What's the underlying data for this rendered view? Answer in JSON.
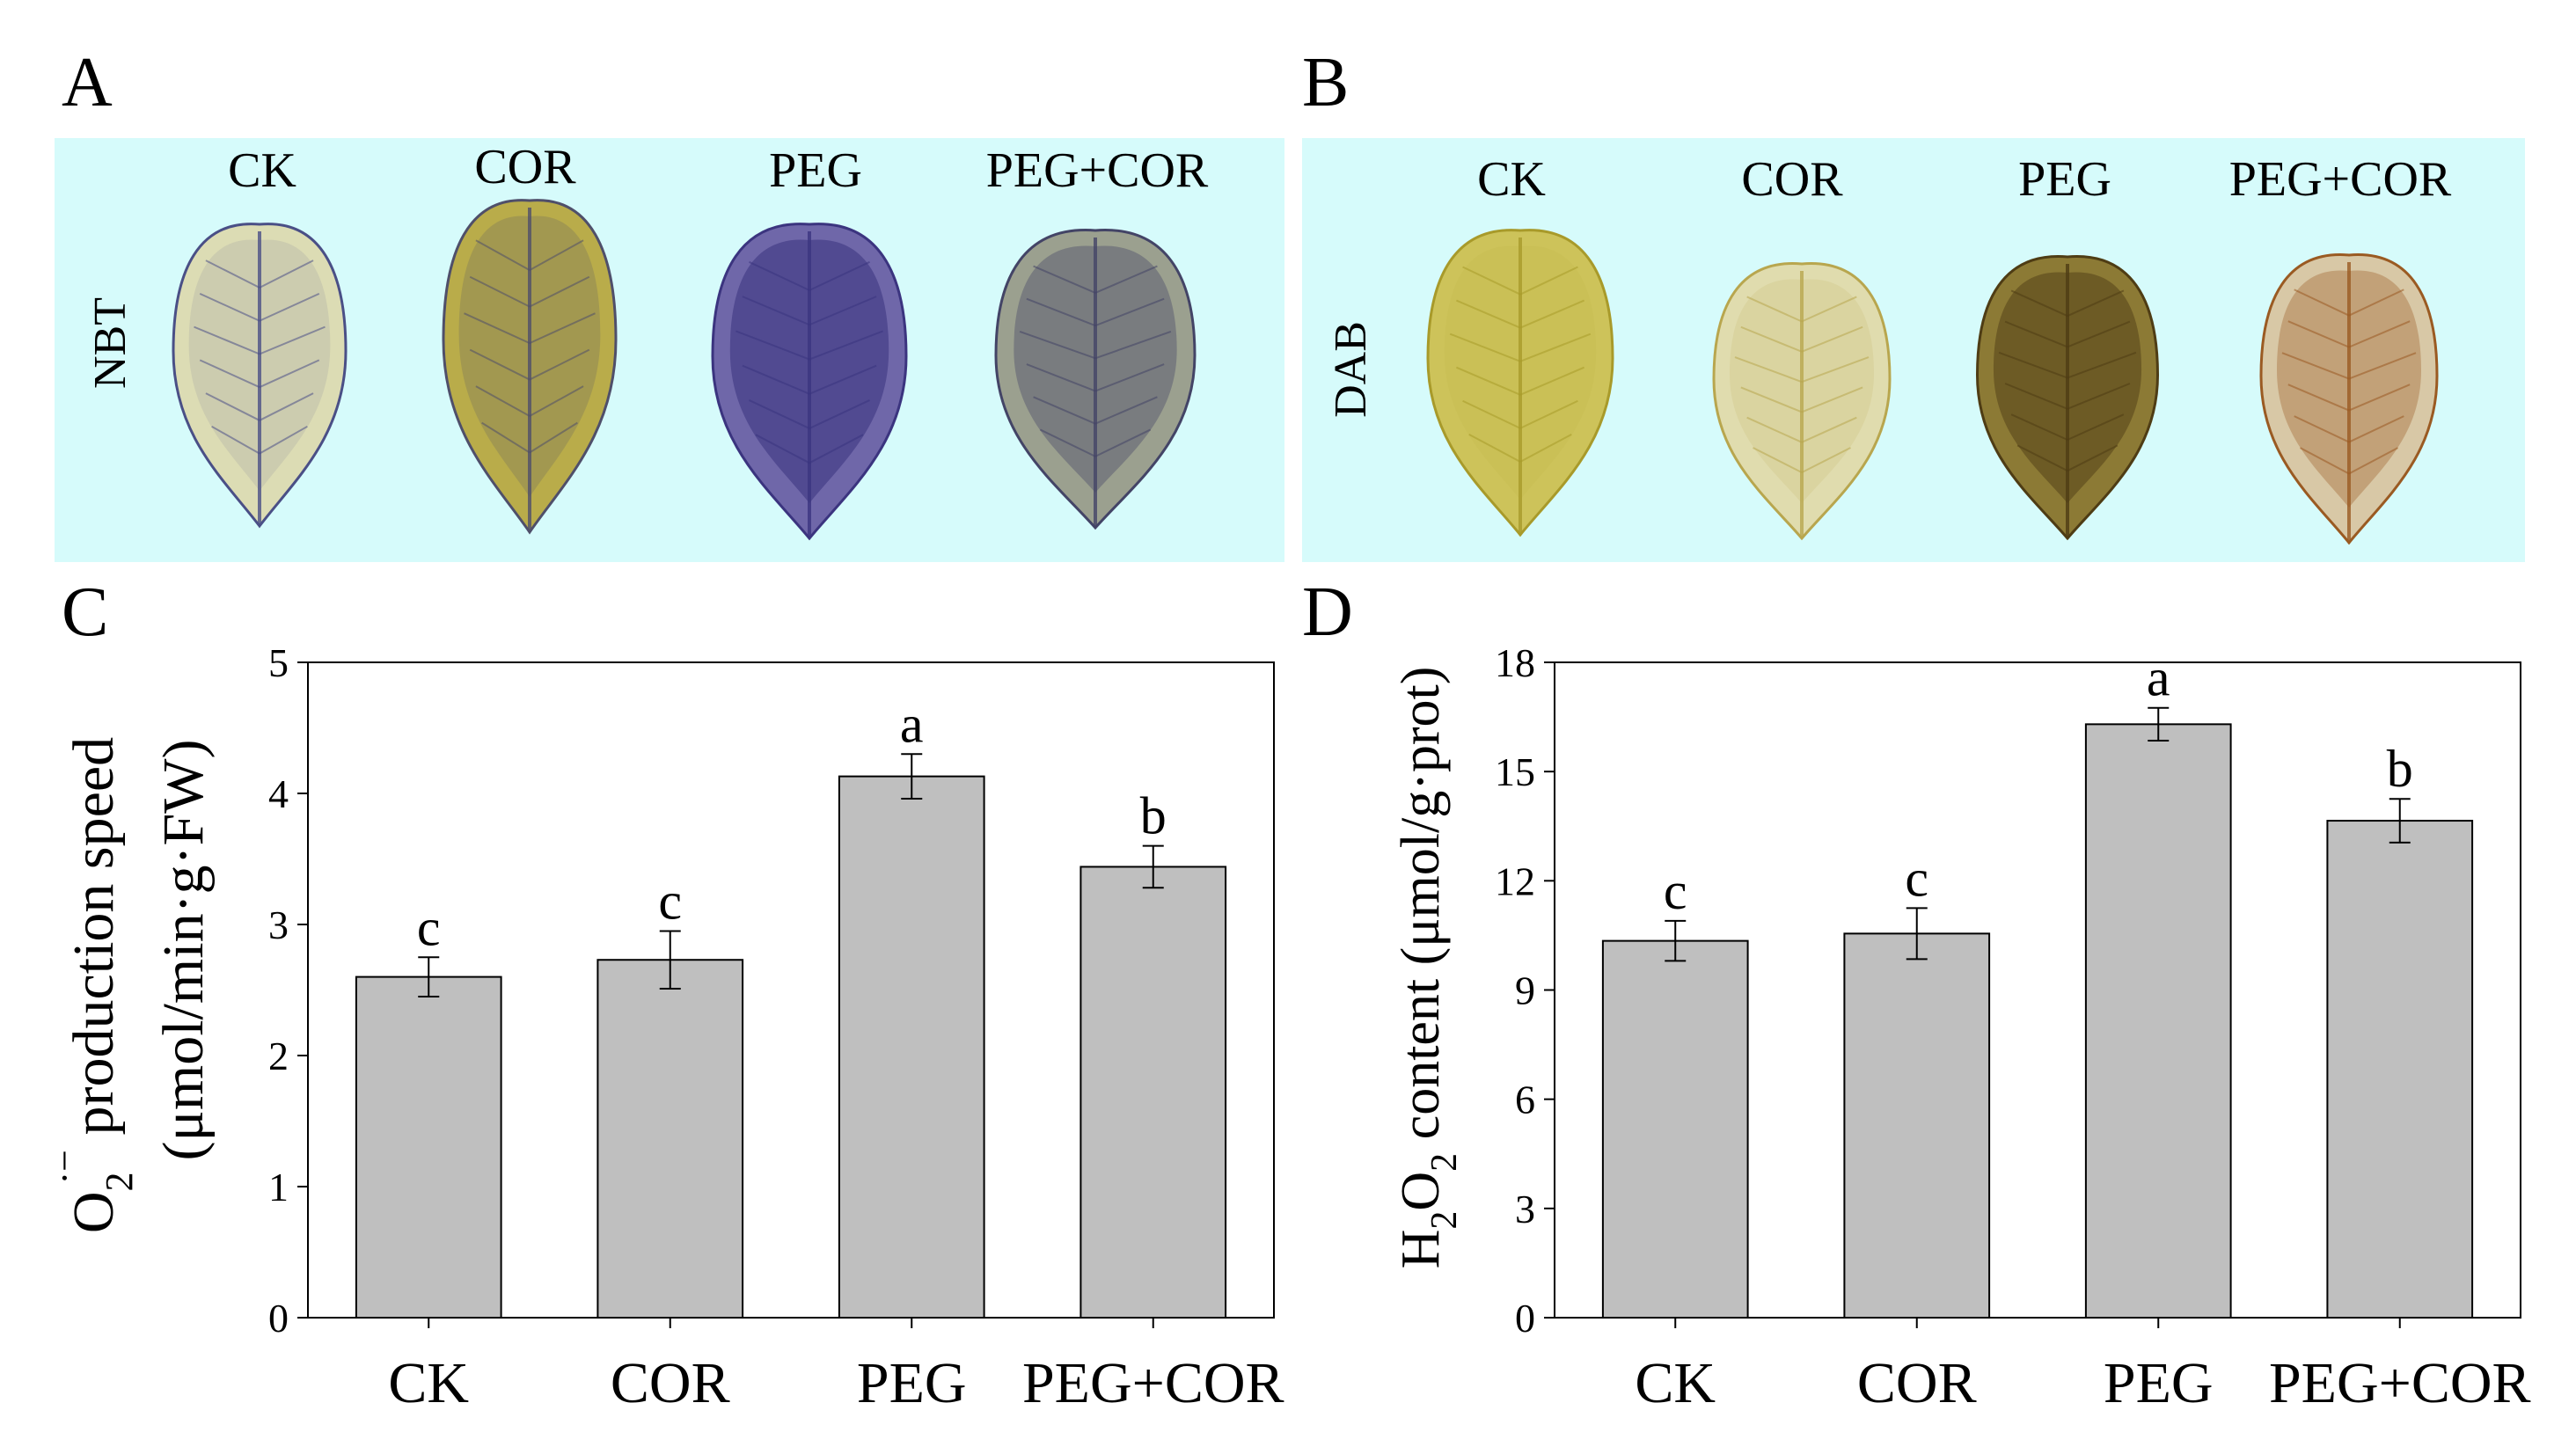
{
  "figure": {
    "panels": {
      "A": {
        "letter": "A",
        "stain_label": "NBT",
        "background": "#d6fbfb",
        "groups": [
          "CK",
          "COR",
          "PEG",
          "PEG+COR"
        ],
        "leaves": [
          {
            "name": "CK",
            "base": "#dcdcb4",
            "stain": "#4a4f86",
            "stain_level": 0.15
          },
          {
            "name": "COR",
            "base": "#b9ac4a",
            "stain": "#4f4f6a",
            "stain_level": 0.3
          },
          {
            "name": "PEG",
            "base": "#6f67a9",
            "stain": "#3b347f",
            "stain_level": 0.8
          },
          {
            "name": "PEG+COR",
            "base": "#9ba08f",
            "stain": "#434466",
            "stain_level": 0.55
          }
        ]
      },
      "B": {
        "letter": "B",
        "stain_label": "DAB",
        "background": "#d6fbfb",
        "groups": [
          "CK",
          "COR",
          "PEG",
          "PEG+COR"
        ],
        "leaves": [
          {
            "name": "CK",
            "base": "#cdc35a",
            "stain": "#a89a2a",
            "stain_level": 0.1
          },
          {
            "name": "COR",
            "base": "#e0dcae",
            "stain": "#b8a64e",
            "stain_level": 0.2
          },
          {
            "name": "PEG",
            "base": "#8c7a35",
            "stain": "#4e3c14",
            "stain_level": 0.7
          },
          {
            "name": "PEG+COR",
            "base": "#d8c8a6",
            "stain": "#9a5a22",
            "stain_level": 0.5
          }
        ]
      }
    }
  },
  "chart_data": [
    {
      "panel": "C",
      "type": "bar",
      "categories": [
        "CK",
        "COR",
        "PEG",
        "PEG+COR"
      ],
      "values": [
        2.6,
        2.73,
        4.13,
        3.44
      ],
      "errors": [
        0.15,
        0.22,
        0.17,
        0.16
      ],
      "letters": [
        "c",
        "c",
        "a",
        "b"
      ],
      "ylim": [
        0,
        5
      ],
      "yticks": [
        "0",
        "1",
        "2",
        "3",
        "4",
        "5"
      ],
      "ytick_values": [
        0,
        1,
        2,
        3,
        4,
        5
      ],
      "ylabel_line1_main": "O",
      "ylabel_line1_sub": "2",
      "ylabel_line1_sup": "·−",
      "ylabel_line1_rest": " production speed",
      "ylabel_line2": "(μmol/min·g·FW)",
      "bar_color": "#bfbfbf"
    },
    {
      "panel": "D",
      "type": "bar",
      "categories": [
        "CK",
        "COR",
        "PEG",
        "PEG+COR"
      ],
      "values": [
        10.35,
        10.55,
        16.3,
        13.65
      ],
      "errors": [
        0.55,
        0.7,
        0.45,
        0.6
      ],
      "letters": [
        "c",
        "c",
        "a",
        "b"
      ],
      "ylim": [
        0,
        18
      ],
      "yticks": [
        "0",
        "3",
        "6",
        "9",
        "12",
        "15",
        "18"
      ],
      "ytick_values": [
        0,
        3,
        6,
        9,
        12,
        15,
        18
      ],
      "ylabel_main": "H",
      "ylabel_sub1": "2",
      "ylabel_mid": "O",
      "ylabel_sub2": "2",
      "ylabel_rest": " content (μmol/g·prot)",
      "bar_color": "#bfbfbf"
    }
  ]
}
